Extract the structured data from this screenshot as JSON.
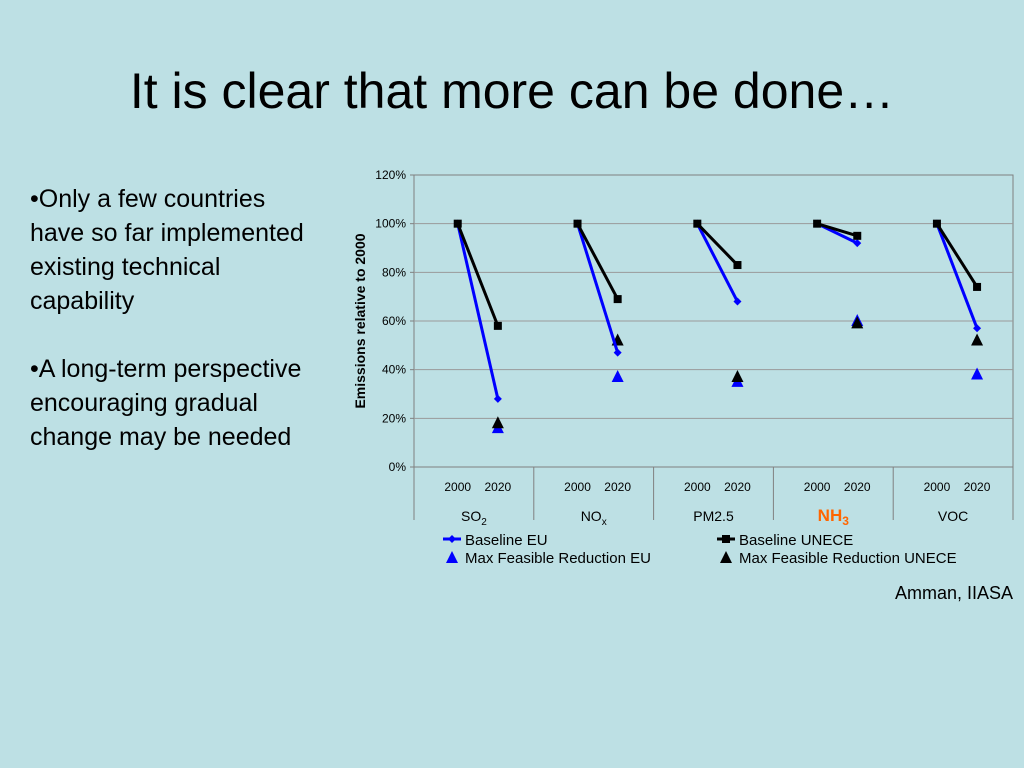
{
  "slide": {
    "title": "It is clear that more can be done…",
    "bullets": [
      "•Only a few countries have so far implemented existing technical capability",
      "•A long-term perspective encouraging gradual change may be needed"
    ],
    "credit": "Amman, IIASA"
  },
  "chart_data": {
    "type": "line",
    "ylabel": "Emissions relative to 2000",
    "ylim": [
      0,
      120
    ],
    "yticks": [
      "0%",
      "20%",
      "40%",
      "60%",
      "80%",
      "100%",
      "120%"
    ],
    "grid": true,
    "legend_position": "bottom",
    "groups": [
      {
        "name": "SO",
        "sub": "2",
        "years": [
          "2000",
          "2020"
        ],
        "highlight": false
      },
      {
        "name": "NO",
        "sub": "x",
        "years": [
          "2000",
          "2020"
        ],
        "highlight": false
      },
      {
        "name": "PM2.5",
        "sub": "",
        "years": [
          "2000",
          "2020"
        ],
        "highlight": false
      },
      {
        "name": "NH",
        "sub": "3",
        "years": [
          "2000",
          "2020"
        ],
        "highlight": true
      },
      {
        "name": "VOC",
        "sub": "",
        "years": [
          "2000",
          "2020"
        ],
        "highlight": false
      }
    ],
    "series": [
      {
        "name": "Baseline EU",
        "color": "#0000ff",
        "marker": "diamond",
        "connected": true,
        "values": [
          [
            100,
            28
          ],
          [
            100,
            47
          ],
          [
            100,
            68
          ],
          [
            100,
            92
          ],
          [
            100,
            57
          ]
        ]
      },
      {
        "name": "Baseline UNECE",
        "color": "#000000",
        "marker": "square",
        "connected": true,
        "values": [
          [
            100,
            58
          ],
          [
            100,
            69
          ],
          [
            100,
            83
          ],
          [
            100,
            95
          ],
          [
            100,
            74
          ]
        ]
      },
      {
        "name": "Max Feasible Reduction EU",
        "color": "#0000ff",
        "marker": "triangle",
        "connected": false,
        "values": [
          [
            null,
            16
          ],
          [
            null,
            37
          ],
          [
            null,
            35
          ],
          [
            null,
            60
          ],
          [
            null,
            38
          ]
        ]
      },
      {
        "name": "Max Feasible Reduction UNECE",
        "color": "#000000",
        "marker": "triangle",
        "connected": false,
        "values": [
          [
            null,
            18
          ],
          [
            null,
            52
          ],
          [
            null,
            37
          ],
          [
            null,
            59
          ],
          [
            null,
            52
          ]
        ]
      }
    ],
    "colors": {
      "highlight": "#ff6600",
      "grid": "#9a9a9a",
      "axis": "#808080"
    }
  }
}
